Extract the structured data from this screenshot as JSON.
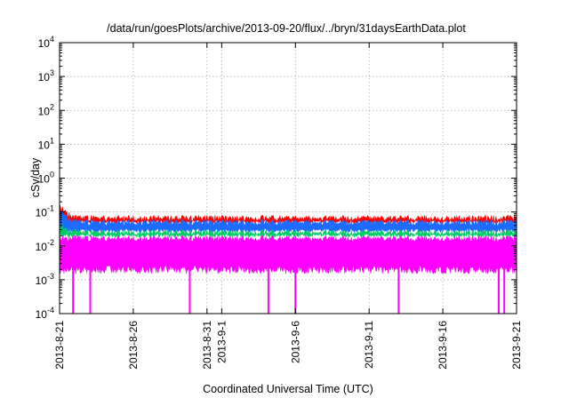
{
  "chart_data": {
    "type": "line",
    "title": "/data/run/goesPlots/archive/2013-09-20/flux/../bryn/31daysEarthData.plot",
    "xlabel": "Coordinated Universal Time (UTC)",
    "ylabel": "cSv/day",
    "yscale": "log",
    "ylim": [
      0.0001,
      10000
    ],
    "xlim": [
      "2013-08-21",
      "2013-09-21"
    ],
    "y_ticks": [
      {
        "base": "10",
        "exp": "-4"
      },
      {
        "base": "10",
        "exp": "-3"
      },
      {
        "base": "10",
        "exp": "-2"
      },
      {
        "base": "10",
        "exp": "-1"
      },
      {
        "base": "10",
        "exp": "0"
      },
      {
        "base": "10",
        "exp": "1"
      },
      {
        "base": "10",
        "exp": "2"
      },
      {
        "base": "10",
        "exp": "3"
      },
      {
        "base": "10",
        "exp": "4"
      }
    ],
    "x_ticks": [
      {
        "label": "2013-8-21",
        "date": "2013-08-21"
      },
      {
        "label": "2013-8-26",
        "date": "2013-08-26"
      },
      {
        "label": "2013-8-31",
        "date": "2013-08-31"
      },
      {
        "label": "2013-9-1",
        "date": "2013-09-01"
      },
      {
        "label": "2013-9-6",
        "date": "2013-09-06"
      },
      {
        "label": "2013-9-11",
        "date": "2013-09-11"
      },
      {
        "label": "2013-9-16",
        "date": "2013-09-16"
      },
      {
        "label": "2013-9-21",
        "date": "2013-09-21"
      }
    ],
    "grid": true,
    "series": [
      {
        "color": "#ff0000",
        "typical_range": [
          0.045,
          0.08
        ],
        "start_peak": 0.17
      },
      {
        "color": "#1e6cff",
        "typical_range": [
          0.025,
          0.06
        ],
        "start_peak": 0.13
      },
      {
        "color": "#00cc66",
        "typical_range": [
          0.018,
          0.03
        ],
        "start_peak": 0.045
      },
      {
        "color": "#ff00ff",
        "typical_range": [
          0.0015,
          0.02
        ],
        "start_peak": 0.02
      }
    ],
    "magenta_dropouts": [
      "2013-08-21T22:00",
      "2013-08-23T02:00",
      "2013-08-29T20:00",
      "2013-09-04T04:00",
      "2013-09-06T00:00",
      "2013-09-13T00:00",
      "2013-09-19T19:00",
      "2013-09-20T04:00"
    ]
  }
}
